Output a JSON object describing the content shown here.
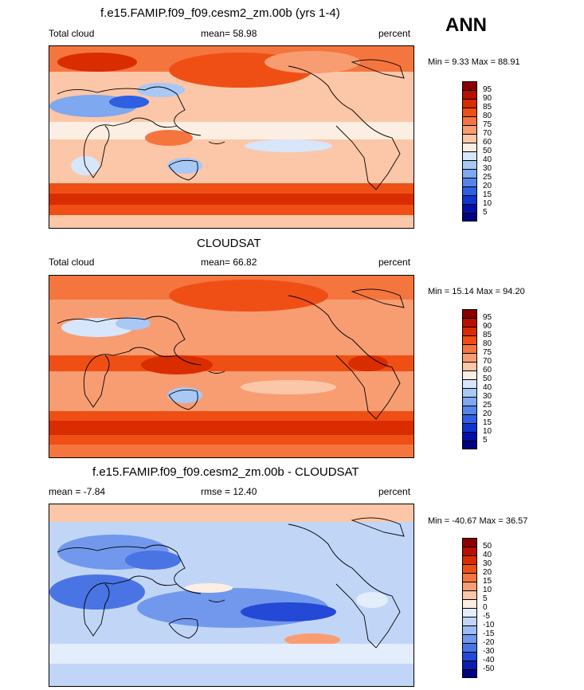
{
  "season": "ANN",
  "panels": [
    {
      "title": "f.e15.FAMIP.f09_f09.cesm2_zm.00b (yrs 1-4)",
      "left_label": "Total cloud",
      "stat_text": "mean=  58.98",
      "units": "percent",
      "minmax": "Min =   9.33 Max =  88.91",
      "levels": [
        "95",
        "90",
        "85",
        "80",
        "75",
        "70",
        "60",
        "50",
        "40",
        "30",
        "25",
        "20",
        "15",
        "10",
        "5"
      ],
      "colors": [
        "#8b0000",
        "#b80f00",
        "#d92d00",
        "#ef4f15",
        "#f5753f",
        "#f89d72",
        "#fbc7a8",
        "#fdeee3",
        "#d7e6fa",
        "#a8c8f5",
        "#7ea8ef",
        "#5585ea",
        "#2f5fe2",
        "#1035cf",
        "#0010a8",
        "#000080"
      ]
    },
    {
      "title": "CLOUDSAT",
      "left_label": "Total cloud",
      "stat_text": "mean=  66.82",
      "units": "percent",
      "minmax": "Min =  15.14 Max =  94.20",
      "levels": [
        "95",
        "90",
        "85",
        "80",
        "75",
        "70",
        "60",
        "50",
        "40",
        "30",
        "25",
        "20",
        "15",
        "10",
        "5"
      ],
      "colors": [
        "#8b0000",
        "#b80f00",
        "#d92d00",
        "#ef4f15",
        "#f5753f",
        "#f89d72",
        "#fbc7a8",
        "#fdeee3",
        "#d7e6fa",
        "#a8c8f5",
        "#7ea8ef",
        "#5585ea",
        "#2f5fe2",
        "#1035cf",
        "#0010a8",
        "#000080"
      ]
    },
    {
      "title": "f.e15.FAMIP.f09_f09.cesm2_zm.00b - CLOUDSAT",
      "left_label": "mean =  -7.84",
      "stat_text": "rmse =  12.40",
      "units": "percent",
      "minmax": "Min = -40.67 Max =  36.57",
      "levels": [
        "50",
        "40",
        "30",
        "20",
        "15",
        "10",
        "5",
        "0",
        "-5",
        "-10",
        "-15",
        "-20",
        "-30",
        "-40",
        "-50"
      ],
      "colors": [
        "#8b0000",
        "#b80f00",
        "#d92d00",
        "#ef4f15",
        "#f5753f",
        "#f89d72",
        "#fbc7a8",
        "#fdeee3",
        "#e3edfb",
        "#c1d6f7",
        "#9dbcf3",
        "#7198ec",
        "#4a74e4",
        "#2349d6",
        "#0a1fb0",
        "#000080"
      ]
    }
  ],
  "chart_data": {
    "type": "heatmap",
    "variable": "Total cloud",
    "units": "percent",
    "season": "ANN",
    "panels": [
      {
        "title": "f.e15.FAMIP.f09_f09.cesm2_zm.00b (yrs 1-4)",
        "mean": 58.98,
        "min": 9.33,
        "max": 88.91,
        "levels": [
          5,
          10,
          15,
          20,
          25,
          30,
          40,
          50,
          60,
          70,
          75,
          80,
          85,
          90,
          95
        ]
      },
      {
        "title": "CLOUDSAT",
        "mean": 66.82,
        "min": 15.14,
        "max": 94.2,
        "levels": [
          5,
          10,
          15,
          20,
          25,
          30,
          40,
          50,
          60,
          70,
          75,
          80,
          85,
          90,
          95
        ]
      },
      {
        "title": "f.e15.FAMIP.f09_f09.cesm2_zm.00b - CLOUDSAT",
        "mean": -7.84,
        "rmse": 12.4,
        "min": -40.67,
        "max": 36.57,
        "levels": [
          -50,
          -40,
          -30,
          -20,
          -15,
          -10,
          -5,
          0,
          5,
          10,
          15,
          20,
          30,
          40,
          50
        ]
      }
    ]
  }
}
